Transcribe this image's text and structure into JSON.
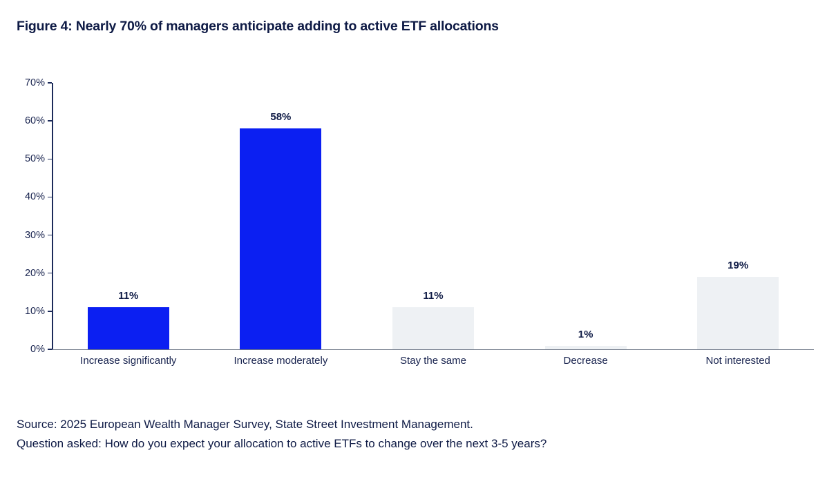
{
  "figure": {
    "title": "Figure 4: Nearly 70% of managers anticipate adding to active ETF allocations"
  },
  "chart_data": {
    "type": "bar",
    "title": "Figure 4: Nearly 70% of managers anticipate adding to active ETF allocations",
    "categories": [
      "Increase significantly",
      "Increase moderately",
      "Stay the same",
      "Decrease",
      "Not interested"
    ],
    "values": [
      11,
      58,
      11,
      1,
      19
    ],
    "value_labels": [
      "11%",
      "58%",
      "11%",
      "1%",
      "19%"
    ],
    "bar_colors": [
      "#0b1ff2",
      "#0b1ff2",
      "#eef1f4",
      "#eef1f4",
      "#eef1f4"
    ],
    "xlabel": "",
    "ylabel": "",
    "ylim": [
      0,
      70
    ],
    "ytick_step": 10,
    "ytick_labels": [
      "0%",
      "10%",
      "20%",
      "30%",
      "40%",
      "50%",
      "60%",
      "70%"
    ],
    "grid": false,
    "legend_position": "none"
  },
  "colors": {
    "accent_blue": "#0b1ff2",
    "neutral_bar": "#eef1f4",
    "text_navy": "#0e1a45"
  },
  "footer": {
    "source": "Source: 2025 European Wealth Manager Survey, State Street Investment Management.",
    "question": "Question asked: How do you expect your allocation to active ETFs to change over the next 3-5 years?"
  }
}
